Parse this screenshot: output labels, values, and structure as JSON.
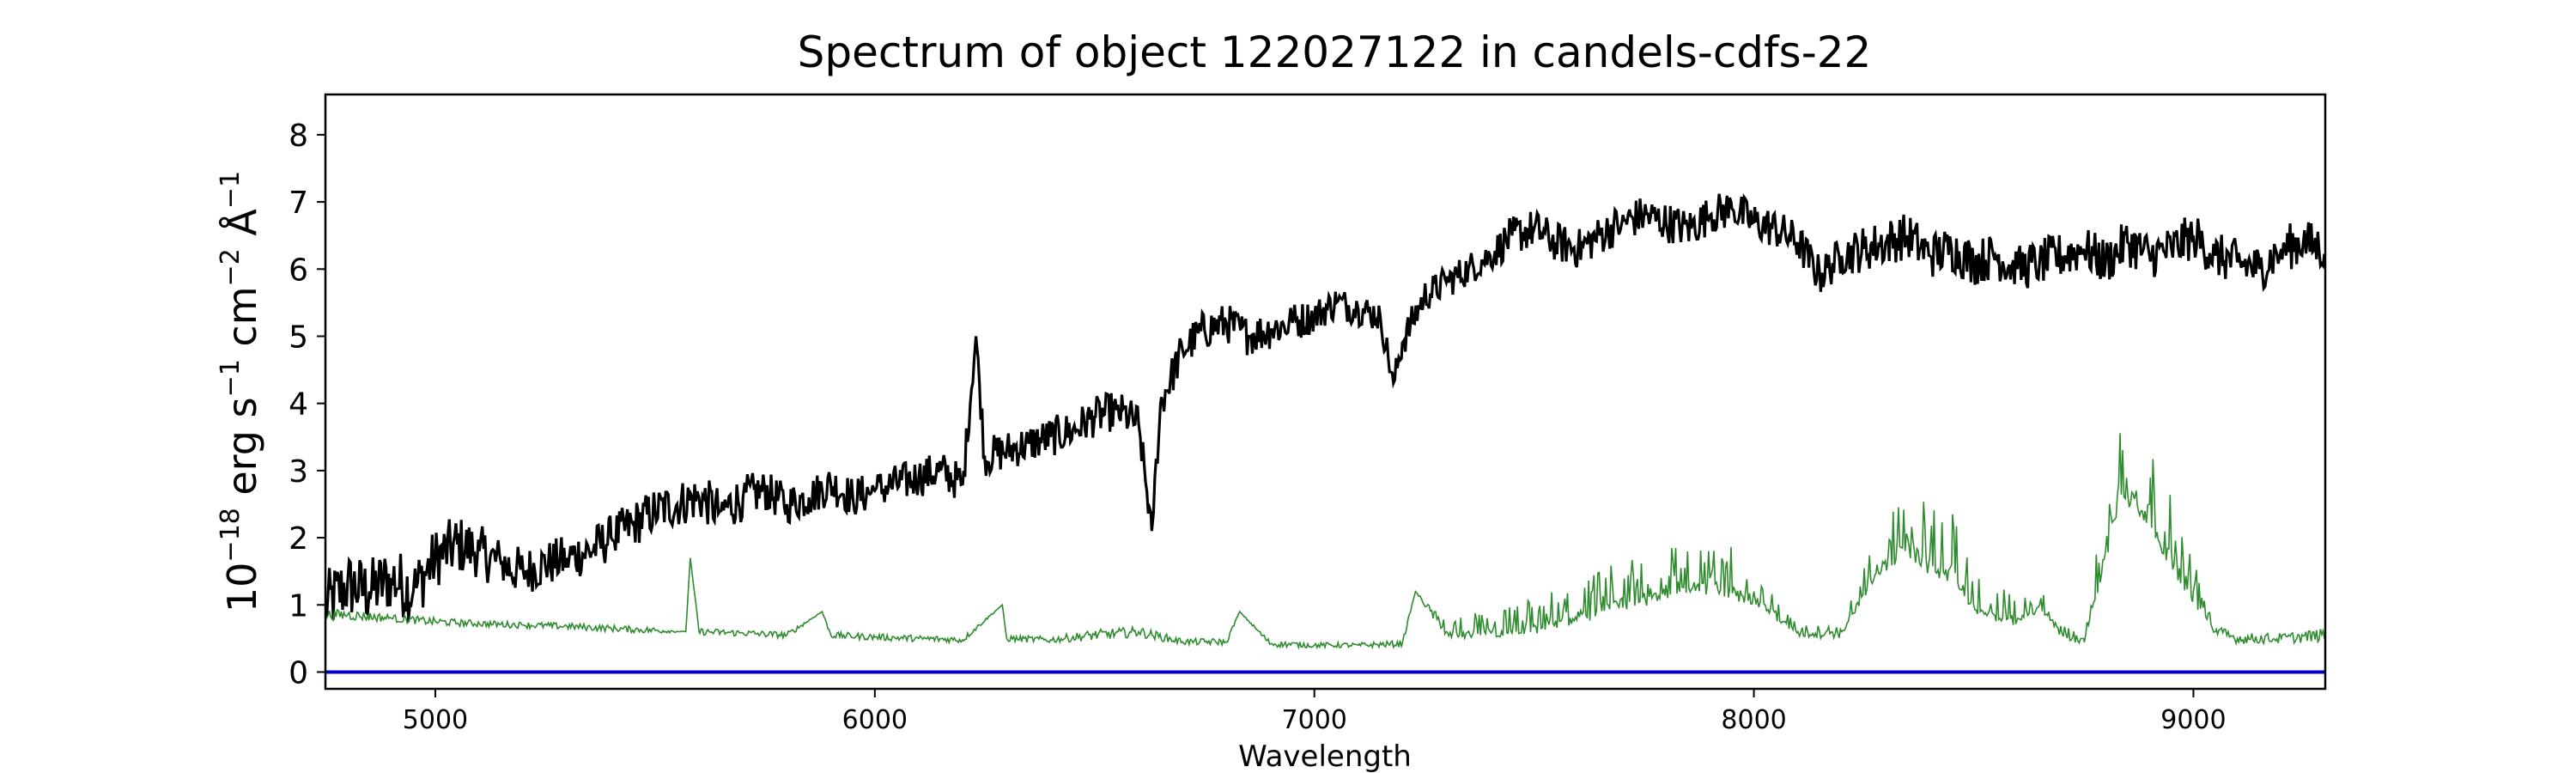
{
  "chart_data": {
    "type": "line",
    "title": "Spectrum of object 122027122 in candels-cdfs-22",
    "xlabel": "Wavelength",
    "ylabel": {
      "base": "10",
      "exp": "−18",
      "unit_text": " erg s",
      "s_exp": "−1",
      "cm_text": " cm",
      "cm_exp": "−2",
      "angstrom": " Å",
      "a_exp": "−1"
    },
    "xlim": [
      4750,
      9300
    ],
    "ylim": [
      -0.25,
      8.6
    ],
    "x_ticks": [
      5000,
      6000,
      7000,
      8000,
      9000
    ],
    "y_ticks": [
      0,
      1,
      2,
      3,
      4,
      5,
      6,
      7,
      8
    ],
    "grid": false,
    "legend": "none",
    "series": [
      {
        "role": "flux",
        "color": "#000000",
        "x": [
          4750,
          4800,
          4850,
          4900,
          4950,
          5000,
          5050,
          5100,
          5150,
          5200,
          5250,
          5300,
          5350,
          5400,
          5450,
          5500,
          5550,
          5600,
          5650,
          5700,
          5750,
          5800,
          5850,
          5900,
          5950,
          6000,
          6050,
          6100,
          6150,
          6200,
          6230,
          6250,
          6300,
          6350,
          6400,
          6450,
          6500,
          6550,
          6600,
          6630,
          6650,
          6700,
          6750,
          6800,
          6850,
          6900,
          6950,
          7000,
          7050,
          7100,
          7150,
          7180,
          7200,
          7250,
          7300,
          7350,
          7400,
          7450,
          7500,
          7550,
          7600,
          7650,
          7700,
          7750,
          7800,
          7850,
          7900,
          7950,
          8000,
          8050,
          8100,
          8150,
          8200,
          8250,
          8300,
          8350,
          8400,
          8450,
          8500,
          8550,
          8600,
          8650,
          8700,
          8750,
          8800,
          8850,
          8900,
          8950,
          9000,
          9050,
          9100,
          9150,
          9200,
          9250,
          9300
        ],
        "y": [
          1.0,
          1.3,
          1.2,
          1.4,
          1.2,
          1.7,
          1.9,
          1.8,
          1.6,
          1.5,
          1.6,
          1.7,
          1.8,
          2.0,
          2.2,
          2.4,
          2.5,
          2.6,
          2.4,
          2.6,
          2.7,
          2.5,
          2.6,
          2.8,
          2.6,
          2.7,
          2.8,
          2.9,
          3.0,
          2.8,
          5.0,
          3.2,
          3.3,
          3.4,
          3.5,
          3.6,
          3.8,
          3.9,
          3.7,
          2.1,
          4.0,
          4.8,
          5.1,
          5.2,
          5.0,
          5.1,
          5.2,
          5.3,
          5.5,
          5.4,
          5.3,
          4.3,
          4.9,
          5.6,
          5.8,
          6.0,
          6.2,
          6.5,
          6.6,
          6.4,
          6.3,
          6.5,
          6.7,
          6.8,
          6.7,
          6.6,
          6.8,
          6.9,
          6.7,
          6.6,
          6.4,
          5.9,
          6.2,
          6.3,
          6.4,
          6.5,
          6.2,
          6.3,
          6.1,
          6.2,
          6.0,
          6.1,
          6.2,
          6.3,
          6.1,
          6.4,
          6.2,
          6.3,
          6.5,
          6.2,
          6.1,
          6.0,
          6.3,
          6.4,
          6.3
        ],
        "noise_amplitude": [
          0.5,
          0.5,
          0.5,
          0.5,
          0.5,
          0.45,
          0.45,
          0.4,
          0.4,
          0.35,
          0.35,
          0.35,
          0.35,
          0.35,
          0.35,
          0.35,
          0.35,
          0.35,
          0.35,
          0.35,
          0.3,
          0.3,
          0.3,
          0.3,
          0.3,
          0.3,
          0.3,
          0.3,
          0.3,
          0.3,
          0.2,
          0.3,
          0.3,
          0.3,
          0.3,
          0.3,
          0.3,
          0.3,
          0.3,
          0.2,
          0.3,
          0.3,
          0.3,
          0.3,
          0.3,
          0.3,
          0.3,
          0.25,
          0.25,
          0.25,
          0.25,
          0.2,
          0.25,
          0.25,
          0.25,
          0.25,
          0.25,
          0.3,
          0.3,
          0.3,
          0.3,
          0.3,
          0.3,
          0.3,
          0.3,
          0.3,
          0.3,
          0.3,
          0.3,
          0.3,
          0.3,
          0.3,
          0.3,
          0.35,
          0.35,
          0.35,
          0.35,
          0.35,
          0.35,
          0.35,
          0.35,
          0.35,
          0.35,
          0.35,
          0.35,
          0.35,
          0.35,
          0.35,
          0.35,
          0.35,
          0.35,
          0.35,
          0.35,
          0.35,
          0.35
        ]
      },
      {
        "role": "noise",
        "color": "#2e8b2e",
        "x": [
          4750,
          4800,
          4900,
          5000,
          5100,
          5200,
          5300,
          5400,
          5500,
          5570,
          5580,
          5600,
          5700,
          5800,
          5880,
          5900,
          6000,
          6100,
          6200,
          6290,
          6300,
          6400,
          6500,
          6600,
          6700,
          6800,
          6830,
          6900,
          7000,
          7100,
          7200,
          7230,
          7300,
          7400,
          7500,
          7600,
          7700,
          7800,
          7900,
          8000,
          8100,
          8200,
          8280,
          8350,
          8400,
          8450,
          8500,
          8600,
          8650,
          8700,
          8750,
          8800,
          8830,
          8870,
          8900,
          8950,
          9000,
          9050,
          9100,
          9200,
          9300
        ],
        "y": [
          0.85,
          0.85,
          0.8,
          0.75,
          0.72,
          0.7,
          0.68,
          0.65,
          0.62,
          0.6,
          1.7,
          0.6,
          0.58,
          0.55,
          0.9,
          0.55,
          0.52,
          0.5,
          0.48,
          1.0,
          0.5,
          0.48,
          0.55,
          0.6,
          0.45,
          0.45,
          0.9,
          0.42,
          0.4,
          0.4,
          0.42,
          1.2,
          0.6,
          0.6,
          0.7,
          0.9,
          1.1,
          1.3,
          1.4,
          1.2,
          0.6,
          0.6,
          1.6,
          2.0,
          1.7,
          1.6,
          1.0,
          0.8,
          1.0,
          0.6,
          0.5,
          1.8,
          2.8,
          2.7,
          2.5,
          1.8,
          1.2,
          0.6,
          0.5,
          0.5,
          0.55
        ],
        "noise_amplitude": [
          0.08,
          0.08,
          0.06,
          0.06,
          0.05,
          0.05,
          0.05,
          0.05,
          0.05,
          0.0,
          0.0,
          0.05,
          0.05,
          0.05,
          0.0,
          0.05,
          0.05,
          0.05,
          0.05,
          0.0,
          0.05,
          0.05,
          0.08,
          0.08,
          0.05,
          0.05,
          0.0,
          0.05,
          0.04,
          0.04,
          0.05,
          0.0,
          0.15,
          0.2,
          0.25,
          0.3,
          0.35,
          0.4,
          0.4,
          0.35,
          0.1,
          0.1,
          0.3,
          0.5,
          0.5,
          0.5,
          0.3,
          0.2,
          0.15,
          0.1,
          0.1,
          0.5,
          0.6,
          0.6,
          0.6,
          0.5,
          0.3,
          0.1,
          0.08,
          0.08,
          0.1
        ]
      },
      {
        "role": "zero-line",
        "color": "#0000cc",
        "x": [
          4750,
          9300
        ],
        "y": [
          0.0,
          0.0
        ]
      }
    ]
  }
}
